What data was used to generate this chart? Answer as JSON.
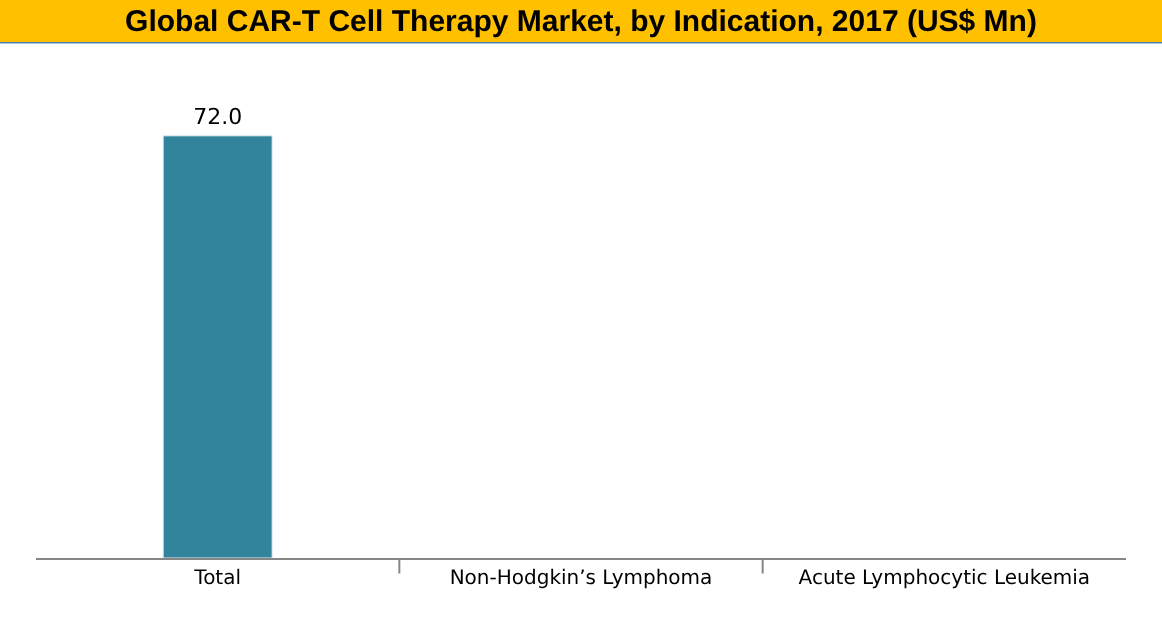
{
  "chart_data": {
    "type": "bar",
    "title": "Global CAR-T Cell Therapy Market, by Indication, 2017 (US$ Mn)",
    "categories": [
      "Total",
      "Non-Hodgkin’s Lymphoma",
      "Acute Lymphocytic Leukemia"
    ],
    "values": [
      72.0,
      null,
      null
    ],
    "color": "#31849b",
    "value_labels": [
      "72.0",
      null,
      null
    ],
    "ylim": [
      0,
      88
    ],
    "tick_labels": "x"
  }
}
